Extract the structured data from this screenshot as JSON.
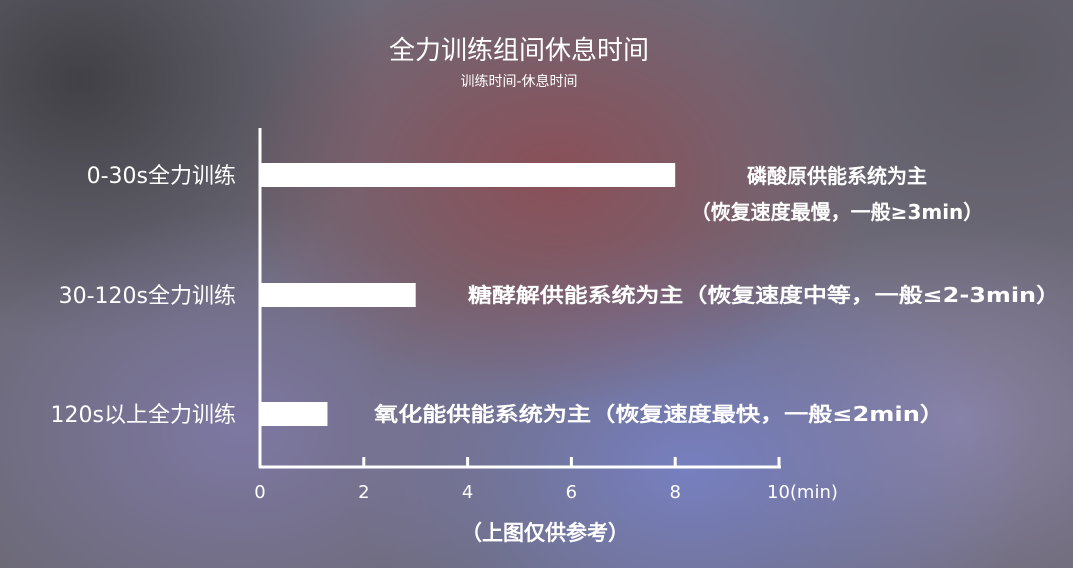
{
  "chart_data": {
    "type": "bar",
    "orientation": "horizontal",
    "title": "全力训练组间休息时间",
    "subtitle": "训练时间-休息时间",
    "categories": [
      "0-30s全力训练",
      "30-120s全力训练",
      "120s以上全力训练"
    ],
    "values": [
      8,
      3,
      1.3
    ],
    "bar_notes": [
      [
        "磷酸原供能系统为主",
        "（恢复速度最慢，一般≥3min）"
      ],
      [
        "糖酵解供能系统为主（恢复速度中等，一般≤2-3min）"
      ],
      [
        "氧化能供能系统为主（恢复速度最快，一般≤2min）"
      ]
    ],
    "x_ticks": [
      "0",
      "2",
      "4",
      "6",
      "8",
      "10(min)"
    ],
    "xlim": [
      0,
      10
    ],
    "grid": false,
    "footnote": "（上图仅供参考）"
  },
  "colors": {
    "bar": "#ffffff",
    "axis": "#ffffff",
    "text": "#ffffff"
  }
}
